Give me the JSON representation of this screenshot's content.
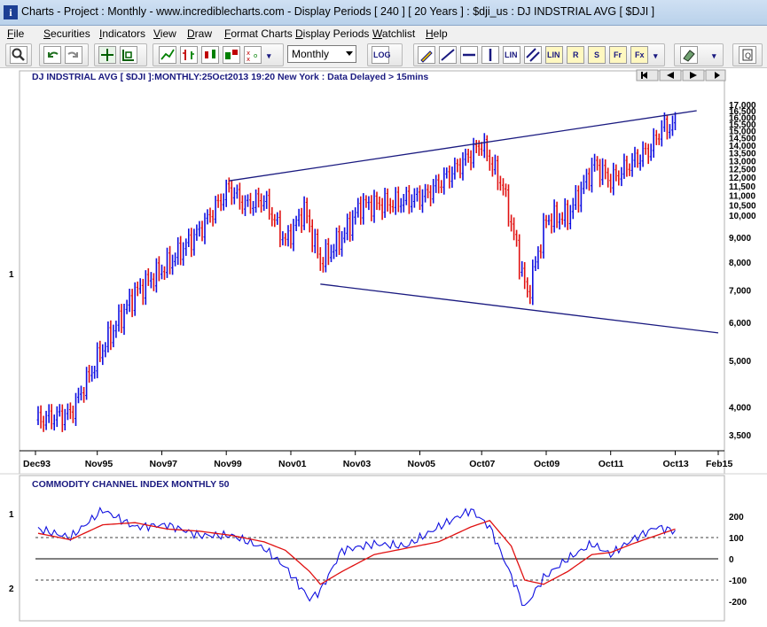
{
  "window": {
    "title": "Charts - Project : Monthly - www.incrediblecharts.com - Display Periods  [ 240 ]  [ 20 Years ] : $dji_us : DJ INDSTRIAL AVG  [ $DJI ]"
  },
  "menu": [
    "File",
    "Securities",
    "Indicators",
    "View",
    "Draw",
    "Format Charts",
    "Display Periods",
    "Watchlist",
    "Help"
  ],
  "toolbar": {
    "period_selected": "Monthly",
    "log_label": "LOG",
    "lin_label": "LIN",
    "r_label": "R",
    "s_label": "S",
    "fr_label": "Fr",
    "fx_label": "Fx"
  },
  "price_panel": {
    "header": "DJ INDSTRIAL AVG [ $DJI ]:MONTHLY:25Oct2013 19:20 New York : Data Delayed > 15mins",
    "panel_number": "1",
    "y_ticks": [
      "17,000",
      "16,500",
      "16,000",
      "15,500",
      "15,000",
      "14,500",
      "14,000",
      "13,500",
      "13,000",
      "12,500",
      "12,000",
      "11,500",
      "11,000",
      "10,500",
      "10,000",
      "9,000",
      "8,000",
      "7,000",
      "6,000",
      "5,000",
      "4,000",
      "3,500"
    ],
    "x_ticks": [
      "Dec93",
      "Nov95",
      "Nov97",
      "Nov99",
      "Nov01",
      "Nov03",
      "Nov05",
      "Oct07",
      "Oct09",
      "Oct11",
      "Oct13",
      "Feb15"
    ]
  },
  "indicator_panel": {
    "header": "COMMODITY CHANNEL INDEX MONTHLY 50",
    "panel_number_top": "1",
    "panel_number_bottom": "2",
    "y_ticks": [
      "200",
      "100",
      "0",
      "-100",
      "-200"
    ]
  },
  "colors": {
    "up_bar": "#1010e0",
    "down_bar": "#e01010",
    "trend_line": "#1a1a80",
    "cci_line": "#1010e0",
    "cci_signal": "#e01010"
  },
  "chart_data": [
    {
      "type": "line",
      "title": "DJ INDSTRIAL AVG [ $DJI ]:MONTHLY:25Oct2013 19:20 New York : Data Delayed > 15mins",
      "x": [
        "1994-01",
        "1995-01",
        "1996-01",
        "1997-01",
        "1998-01",
        "1999-01",
        "1999-12",
        "2000-06",
        "2001-01",
        "2001-09",
        "2002-04",
        "2002-10",
        "2003-06",
        "2004-01",
        "2005-01",
        "2006-01",
        "2007-01",
        "2007-10",
        "2008-06",
        "2009-03",
        "2009-10",
        "2010-06",
        "2011-04",
        "2011-10",
        "2012-06",
        "2013-01",
        "2013-05",
        "2013-10"
      ],
      "close": [
        3760,
        3870,
        5300,
        6900,
        7900,
        9300,
        11400,
        10500,
        10800,
        8800,
        10300,
        8000,
        9000,
        10500,
        10600,
        11000,
        12600,
        14100,
        11400,
        6800,
        9800,
        10000,
        12800,
        11800,
        12900,
        13800,
        15200,
        15400
      ],
      "trendlines": [
        {
          "from": [
            "1999-12",
            11800
          ],
          "to": [
            "2014-06",
            16500
          ]
        },
        {
          "from": [
            "2002-10",
            7200
          ],
          "to": [
            "2015-02",
            5700
          ]
        }
      ],
      "x_ticks": [
        "Dec93",
        "Nov95",
        "Nov97",
        "Nov99",
        "Nov01",
        "Nov03",
        "Nov05",
        "Oct07",
        "Oct09",
        "Oct11",
        "Oct13",
        "Feb15"
      ],
      "y_ticks": [
        "17,000",
        "16,500",
        "16,000",
        "15,500",
        "15,000",
        "14,500",
        "14,000",
        "13,500",
        "13,000",
        "12,500",
        "12,000",
        "11,500",
        "11,000",
        "10,500",
        "10,000",
        "9,000",
        "8,000",
        "7,000",
        "6,000",
        "5,000",
        "4,000",
        "3,500"
      ],
      "y_scale": "log",
      "ylim": [
        3300,
        17500
      ]
    },
    {
      "type": "line",
      "title": "COMMODITY CHANNEL INDEX MONTHLY 50",
      "x": [
        "1994-01",
        "1995-01",
        "1996-01",
        "1997-01",
        "1998-01",
        "1999-01",
        "2000-01",
        "2001-01",
        "2001-09",
        "2002-06",
        "2002-10",
        "2003-06",
        "2004-06",
        "2005-06",
        "2006-06",
        "2007-06",
        "2008-01",
        "2008-09",
        "2009-02",
        "2009-09",
        "2010-06",
        "2011-03",
        "2011-10",
        "2012-06",
        "2013-03",
        "2013-10"
      ],
      "series": [
        {
          "values": [
            140,
            100,
            230,
            150,
            160,
            110,
            110,
            50,
            -40,
            -190,
            -150,
            40,
            70,
            60,
            150,
            230,
            150,
            -80,
            -230,
            -90,
            0,
            70,
            20,
            90,
            150,
            130
          ]
        },
        {
          "values": [
            120,
            90,
            160,
            170,
            140,
            130,
            110,
            80,
            40,
            -60,
            -120,
            -60,
            20,
            50,
            80,
            150,
            180,
            60,
            -100,
            -120,
            -60,
            20,
            30,
            70,
            110,
            140
          ]
        }
      ],
      "y_ticks": [
        200,
        100,
        0,
        -100,
        -200
      ],
      "ylim": [
        -260,
        260
      ],
      "reference_lines": [
        100,
        0,
        -100
      ]
    }
  ]
}
